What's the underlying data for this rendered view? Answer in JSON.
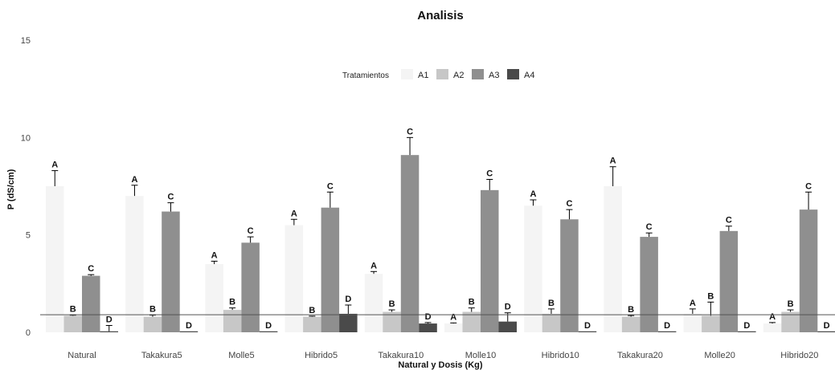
{
  "chart_data": {
    "type": "bar",
    "title": "Analisis",
    "xlabel": "Natural y Dosis (Kg)",
    "ylabel": "P (dS/cm)",
    "ylim": [
      0,
      15
    ],
    "yticks": [
      0,
      5,
      10,
      15
    ],
    "hline": 0.9,
    "grid": false,
    "legend": {
      "title": "Tratamientos",
      "placement": "top"
    },
    "categories": [
      "Natural",
      "Takakura5",
      "Molle5",
      "Hibrido5",
      "Takakura10",
      "Molle10",
      "Hibrido10",
      "Takakura20",
      "Molle20",
      "Hibrido20"
    ],
    "series": [
      {
        "name": "A1",
        "color": "#f4f4f4",
        "label": "A",
        "values": [
          7.5,
          7.0,
          3.5,
          5.5,
          3.0,
          0.45,
          6.5,
          7.5,
          0.95,
          0.45
        ],
        "errors": [
          0.8,
          0.55,
          0.15,
          0.3,
          0.12,
          0.03,
          0.3,
          1.0,
          0.25,
          0.05
        ]
      },
      {
        "name": "A2",
        "color": "#c7c7c7",
        "label": "B",
        "values": [
          0.85,
          0.8,
          1.15,
          0.8,
          1.05,
          1.05,
          0.95,
          0.8,
          0.85,
          1.05
        ],
        "errors": [
          0.03,
          0.08,
          0.1,
          0.03,
          0.1,
          0.2,
          0.25,
          0.06,
          0.7,
          0.1
        ]
      },
      {
        "name": "A3",
        "color": "#8f8f8f",
        "label": "C",
        "values": [
          2.9,
          6.2,
          4.6,
          6.4,
          9.1,
          7.3,
          5.8,
          4.9,
          5.2,
          6.3
        ],
        "errors": [
          0.06,
          0.45,
          0.3,
          0.8,
          0.9,
          0.55,
          0.5,
          0.2,
          0.25,
          0.9
        ]
      },
      {
        "name": "A4",
        "color": "#4a4a4a",
        "label": "D",
        "values": [
          0.05,
          0.05,
          0.05,
          0.95,
          0.45,
          0.55,
          0.05,
          0.05,
          0.05,
          0.05
        ],
        "errors": [
          0.3,
          0.0,
          0.0,
          0.45,
          0.05,
          0.45,
          0.0,
          0.0,
          0.0,
          0.0
        ]
      }
    ]
  }
}
